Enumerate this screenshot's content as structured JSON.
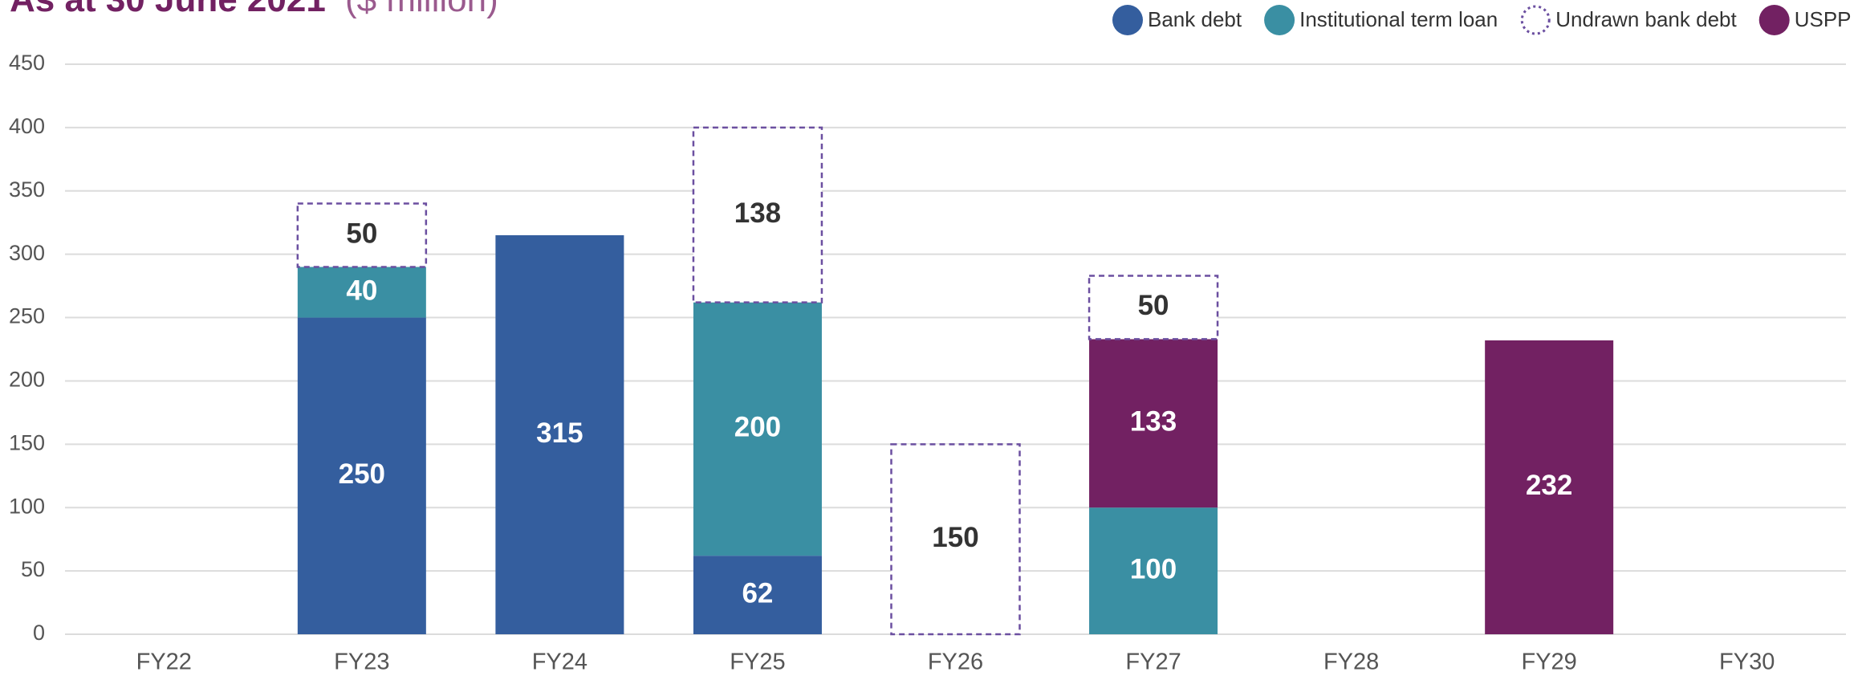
{
  "chart_data": {
    "type": "stacked_bar",
    "title": "As at 30 June 2021",
    "subtitle": "($ million)",
    "categories": [
      "FY22",
      "FY23",
      "FY24",
      "FY25",
      "FY26",
      "FY27",
      "FY28",
      "FY29",
      "FY30"
    ],
    "series": [
      {
        "name": "Bank debt",
        "color": "#345e9e",
        "values": [
          null,
          250,
          315,
          62,
          null,
          null,
          null,
          null,
          null
        ]
      },
      {
        "name": "Institutional term loan",
        "color": "#3a8fa3",
        "values": [
          null,
          40,
          null,
          200,
          null,
          100,
          null,
          null,
          null
        ]
      },
      {
        "name": "Undrawn bank debt",
        "color": "#6b4fa0",
        "style": "dashed",
        "values": [
          null,
          50,
          null,
          138,
          150,
          50,
          null,
          null,
          null
        ]
      },
      {
        "name": "USPP",
        "color": "#722162",
        "values": [
          null,
          null,
          null,
          null,
          null,
          133,
          null,
          232,
          null
        ]
      }
    ],
    "ylim": [
      0,
      450
    ],
    "yticks": [
      0,
      50,
      100,
      150,
      200,
      250,
      300,
      350,
      400,
      450
    ],
    "grid": true,
    "legend": "top-right"
  }
}
